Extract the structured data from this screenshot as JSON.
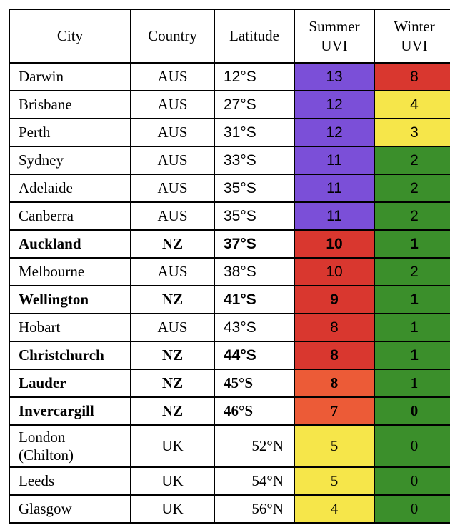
{
  "table": {
    "header": [
      "City",
      "Country",
      "Latitude",
      "Summer UVI",
      "Winter UVI"
    ],
    "rows": [
      {
        "cells": [
          "Darwin",
          "AUS",
          "12°S",
          13,
          8
        ],
        "colors": [
          "#7b4fd8",
          "#d9372f"
        ],
        "bold": false,
        "sans": true
      },
      {
        "cells": [
          "Brisbane",
          "AUS",
          "27°S",
          12,
          4
        ],
        "colors": [
          "#7b4fd8",
          "#f6e64a"
        ],
        "bold": false,
        "sans": true
      },
      {
        "cells": [
          "Perth",
          "AUS",
          "31°S",
          12,
          3
        ],
        "colors": [
          "#7b4fd8",
          "#f6e64a"
        ],
        "bold": false,
        "sans": true
      },
      {
        "cells": [
          "Sydney",
          "AUS",
          "33°S",
          11,
          2
        ],
        "colors": [
          "#7b4fd8",
          "#3b8f2b"
        ],
        "bold": false,
        "sans": true
      },
      {
        "cells": [
          "Adelaide",
          "AUS",
          "35°S",
          11,
          2
        ],
        "colors": [
          "#7b4fd8",
          "#3b8f2b"
        ],
        "bold": false,
        "sans": true
      },
      {
        "cells": [
          "Canberra",
          "AUS",
          "35°S",
          11,
          2
        ],
        "colors": [
          "#7b4fd8",
          "#3b8f2b"
        ],
        "bold": false,
        "sans": true
      },
      {
        "cells": [
          "Auckland",
          "NZ",
          "37°S",
          10,
          1
        ],
        "colors": [
          "#d9372f",
          "#3b8f2b"
        ],
        "bold": true,
        "sans": true
      },
      {
        "cells": [
          "Melbourne",
          "AUS",
          "38°S",
          10,
          2
        ],
        "colors": [
          "#d9372f",
          "#3b8f2b"
        ],
        "bold": false,
        "sans": true
      },
      {
        "cells": [
          "Wellington",
          "NZ",
          "41°S",
          9,
          1
        ],
        "colors": [
          "#d9372f",
          "#3b8f2b"
        ],
        "bold": true,
        "sans": true
      },
      {
        "cells": [
          "Hobart",
          "AUS",
          "43°S",
          8,
          1
        ],
        "colors": [
          "#d9372f",
          "#3b8f2b"
        ],
        "bold": false,
        "sans": true
      },
      {
        "cells": [
          "Christchurch",
          "NZ",
          "44°S",
          8,
          1
        ],
        "colors": [
          "#d9372f",
          "#3b8f2b"
        ],
        "bold": true,
        "sans": true
      },
      {
        "cells": [
          "Lauder",
          "NZ",
          "45°S",
          8,
          1
        ],
        "colors": [
          "#ec5b37",
          "#3b8f2b"
        ],
        "bold": true,
        "sans": false
      },
      {
        "cells": [
          "Invercargill",
          "NZ",
          "46°S",
          7,
          0
        ],
        "colors": [
          "#ec5b37",
          "#3b8f2b"
        ],
        "bold": true,
        "sans": false
      },
      {
        "cells": [
          "London (Chilton)",
          "UK",
          "52°N",
          5,
          0
        ],
        "colors": [
          "#f6e64a",
          "#3b8f2b"
        ],
        "bold": false,
        "sans": false
      },
      {
        "cells": [
          "Leeds",
          "UK",
          "54°N",
          5,
          0
        ],
        "colors": [
          "#f6e64a",
          "#3b8f2b"
        ],
        "bold": false,
        "sans": false
      },
      {
        "cells": [
          "Glasgow",
          "UK",
          "56°N",
          4,
          0
        ],
        "colors": [
          "#f6e64a",
          "#3b8f2b"
        ],
        "bold": false,
        "sans": false
      }
    ]
  }
}
